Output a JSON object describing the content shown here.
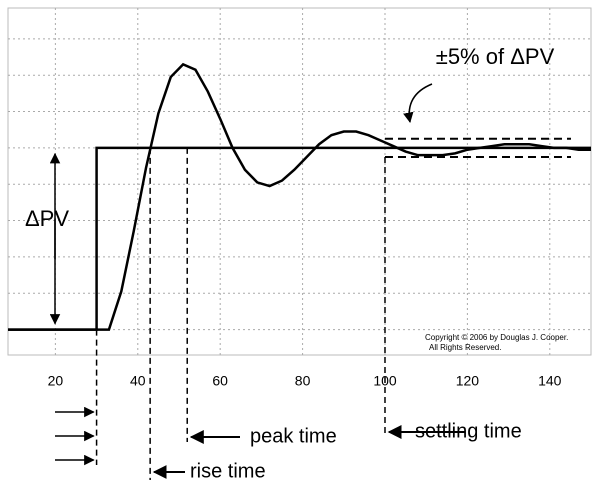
{
  "chart_data": {
    "type": "line",
    "xlim": [
      8.5,
      150
    ],
    "ylim": [
      -0.14,
      1.77
    ],
    "xticks": [
      20,
      40,
      60,
      80,
      100,
      120,
      140
    ],
    "yticks": [
      0,
      0.2,
      0.4,
      0.6,
      0.8,
      1,
      1.2,
      1.4,
      1.6
    ],
    "grid": true,
    "series": [
      {
        "color": "#000000",
        "x": [
          8.5,
          30,
          30,
          150
        ],
        "values": [
          0,
          0,
          1,
          1
        ]
      },
      {
        "color": "#000000",
        "x": [
          8.5,
          33,
          36,
          39,
          42,
          45,
          48,
          51,
          54,
          57,
          60,
          63,
          66,
          69,
          72,
          75,
          78,
          81,
          84,
          87,
          90,
          93,
          96,
          99,
          102,
          105,
          108,
          111,
          114,
          117,
          120,
          123,
          126,
          129,
          132,
          135,
          138,
          141,
          144,
          147,
          150
        ],
        "values": [
          0,
          0,
          0.21,
          0.54,
          0.89,
          1.19,
          1.39,
          1.46,
          1.43,
          1.31,
          1.16,
          1.0,
          0.88,
          0.81,
          0.79,
          0.82,
          0.88,
          0.95,
          1.02,
          1.07,
          1.09,
          1.09,
          1.07,
          1.04,
          1.01,
          0.98,
          0.96,
          0.96,
          0.96,
          0.97,
          0.99,
          1.0,
          1.01,
          1.02,
          1.02,
          1.02,
          1.01,
          1.0,
          1.0,
          0.99,
          0.99
        ]
      }
    ],
    "band": {
      "label": "±5% of ΔPV",
      "low": 0.95,
      "high": 1.05,
      "x_start": 100
    },
    "delta_label": "ΔPV",
    "markers": [
      {
        "label": "peak time",
        "x": 52
      },
      {
        "label": "rise time",
        "x": 43
      },
      {
        "label": "settling time",
        "x": 100
      }
    ],
    "copyright": [
      "Copyright © 2006 by Douglas J. Cooper.",
      "All Rights Reserved."
    ]
  }
}
